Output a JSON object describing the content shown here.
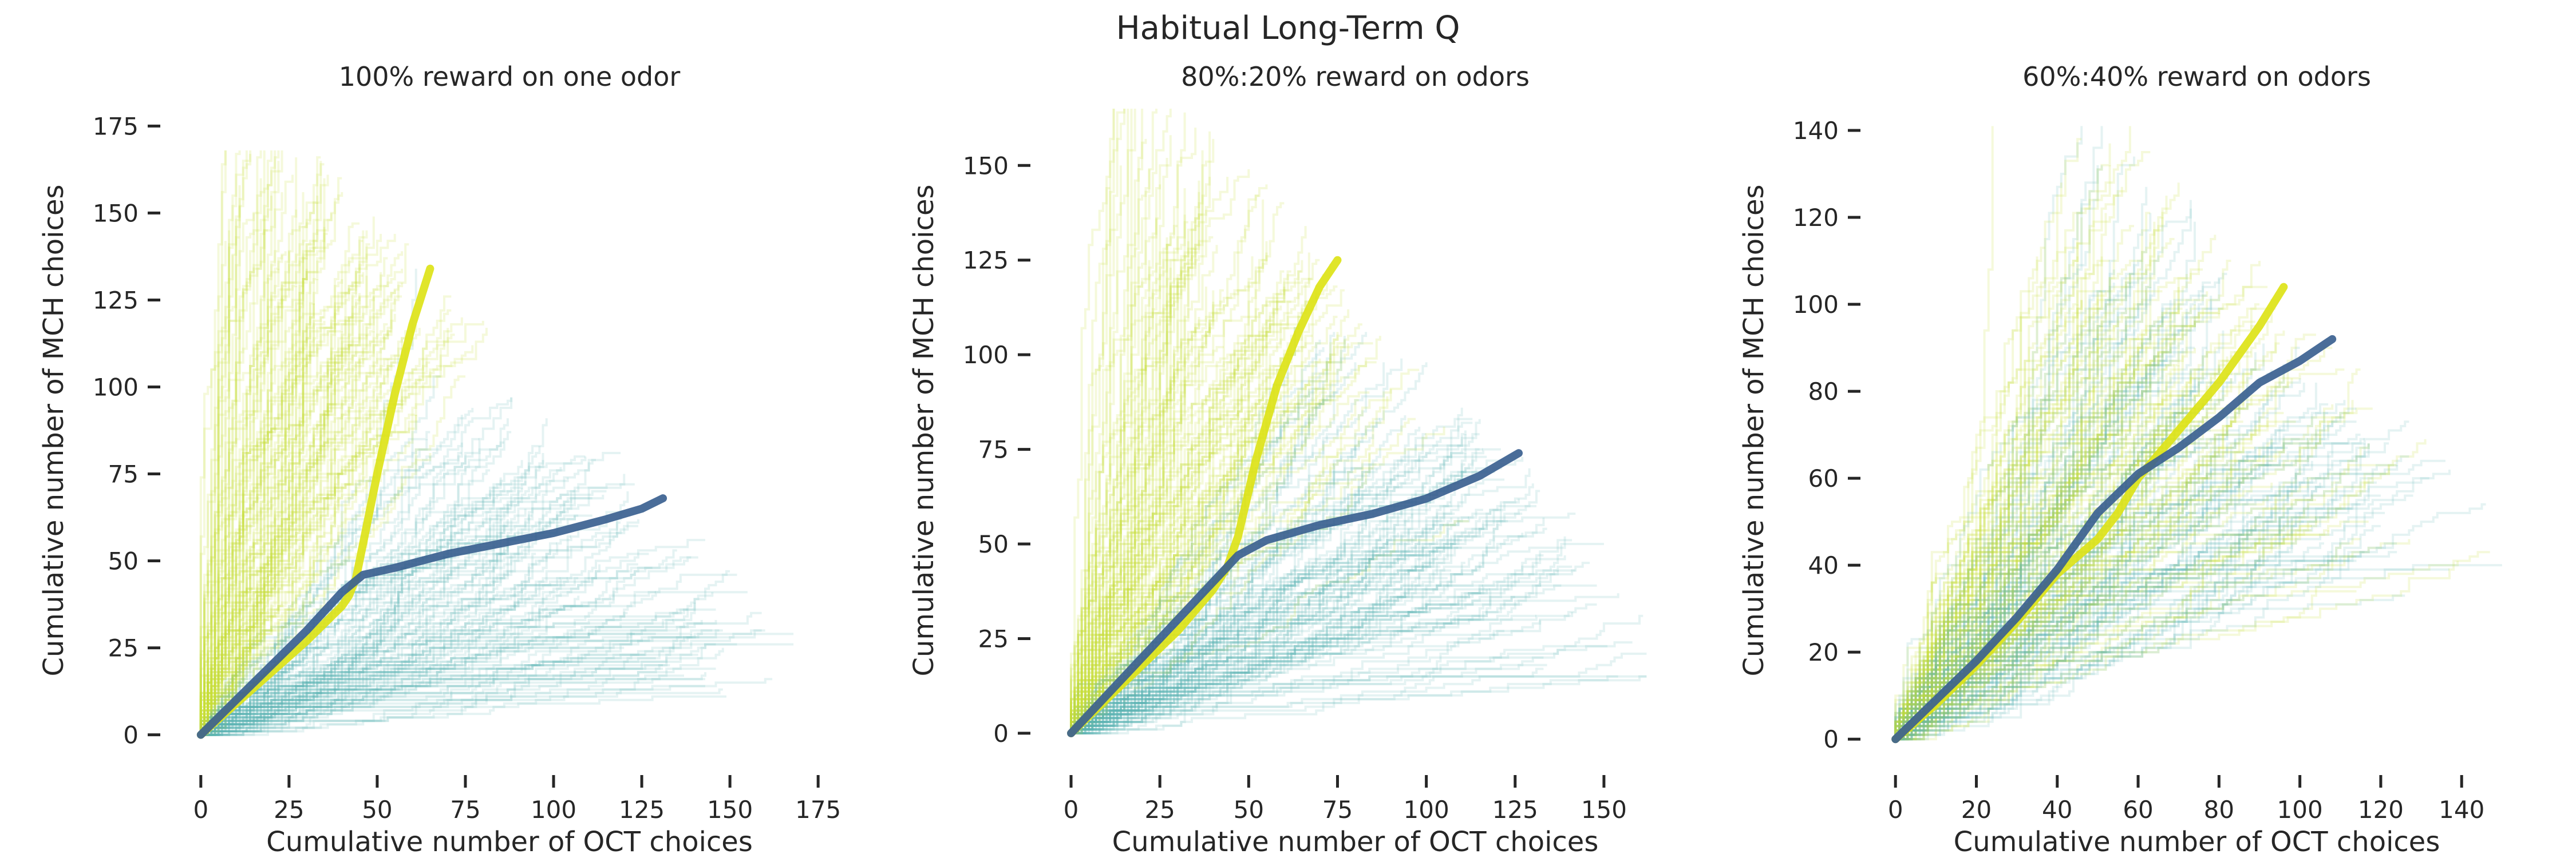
{
  "figure": {
    "title": "Habitual Long-Term Q"
  },
  "colors": {
    "yellow_group": "#dde318",
    "blue_group": "#3b6190",
    "yellow_thin": "#c6df3a",
    "teal_thin": "#5fb3b3",
    "dark_mix": "#3e6a78"
  },
  "chart_data": [
    {
      "type": "line",
      "title": "100% reward on one odor",
      "xlabel": "Cumulative number of OCT choices",
      "ylabel": "Cumulative number of MCH choices",
      "xlim": [
        -5,
        180
      ],
      "ylim": [
        -5,
        180
      ],
      "xticks": [
        0,
        25,
        50,
        75,
        100,
        125,
        150,
        175
      ],
      "yticks": [
        0,
        25,
        50,
        75,
        100,
        125,
        150,
        175
      ],
      "series": [
        {
          "color": "#dde318",
          "points": [
            [
              0,
              0
            ],
            [
              10,
              9
            ],
            [
              20,
              18
            ],
            [
              30,
              27
            ],
            [
              35,
              32
            ],
            [
              40,
              37
            ],
            [
              42,
              40
            ],
            [
              44,
              45
            ],
            [
              46,
              55
            ],
            [
              50,
              75
            ],
            [
              55,
              98
            ],
            [
              60,
              118
            ],
            [
              65,
              134
            ]
          ]
        },
        {
          "color": "#3b6190",
          "points": [
            [
              0,
              0
            ],
            [
              10,
              10
            ],
            [
              20,
              20
            ],
            [
              30,
              30
            ],
            [
              40,
              41
            ],
            [
              46,
              46
            ],
            [
              55,
              48
            ],
            [
              70,
              52
            ],
            [
              85,
              55
            ],
            [
              100,
              58
            ],
            [
              115,
              62
            ],
            [
              125,
              65
            ],
            [
              131,
              68
            ]
          ]
        }
      ],
      "envelope": {
        "total_max": 200,
        "x_max": 168,
        "y_max": 168
      }
    },
    {
      "type": "line",
      "title": "80%:20% reward on odors",
      "xlabel": "Cumulative number of OCT choices",
      "ylabel": "Cumulative number of MCH choices",
      "xlim": [
        -5,
        165
      ],
      "ylim": [
        -5,
        165
      ],
      "xticks": [
        0,
        25,
        50,
        75,
        100,
        125,
        150
      ],
      "yticks": [
        0,
        25,
        50,
        75,
        100,
        125,
        150
      ],
      "series": [
        {
          "color": "#dde318",
          "points": [
            [
              0,
              0
            ],
            [
              10,
              9
            ],
            [
              20,
              18
            ],
            [
              30,
              27
            ],
            [
              40,
              38
            ],
            [
              44,
              44
            ],
            [
              47,
              52
            ],
            [
              52,
              72
            ],
            [
              58,
              92
            ],
            [
              64,
              106
            ],
            [
              70,
              118
            ],
            [
              75,
              125
            ]
          ]
        },
        {
          "color": "#3b6190",
          "points": [
            [
              0,
              0
            ],
            [
              10,
              10
            ],
            [
              20,
              20
            ],
            [
              30,
              30
            ],
            [
              40,
              40
            ],
            [
              47,
              47
            ],
            [
              55,
              51
            ],
            [
              70,
              55
            ],
            [
              85,
              58
            ],
            [
              100,
              62
            ],
            [
              115,
              68
            ],
            [
              126,
              74
            ]
          ]
        }
      ],
      "envelope": {
        "total_max": 200,
        "x_max": 162,
        "y_max": 165
      }
    },
    {
      "type": "line",
      "title": "60%:40% reward on odors",
      "xlabel": "Cumulative number of OCT choices",
      "ylabel": "Cumulative number of MCH choices",
      "xlim": [
        -3,
        152
      ],
      "ylim": [
        -3,
        145
      ],
      "xticks": [
        0,
        20,
        40,
        60,
        80,
        100,
        120,
        140
      ],
      "yticks": [
        0,
        20,
        40,
        60,
        80,
        100,
        120,
        140
      ],
      "series": [
        {
          "color": "#dde318",
          "points": [
            [
              0,
              0
            ],
            [
              10,
              8
            ],
            [
              20,
              17
            ],
            [
              30,
              27
            ],
            [
              40,
              38
            ],
            [
              50,
              46
            ],
            [
              55,
              52
            ],
            [
              60,
              60
            ],
            [
              70,
              71
            ],
            [
              80,
              82
            ],
            [
              90,
              95
            ],
            [
              96,
              104
            ]
          ]
        },
        {
          "color": "#3b6190",
          "points": [
            [
              0,
              0
            ],
            [
              10,
              9
            ],
            [
              20,
              18
            ],
            [
              30,
              28
            ],
            [
              40,
              39
            ],
            [
              50,
              52
            ],
            [
              60,
              61
            ],
            [
              70,
              67
            ],
            [
              80,
              74
            ],
            [
              90,
              82
            ],
            [
              100,
              87
            ],
            [
              108,
              92
            ]
          ]
        }
      ],
      "envelope": {
        "total_max": 200,
        "x_max": 150,
        "y_max": 141
      }
    }
  ]
}
